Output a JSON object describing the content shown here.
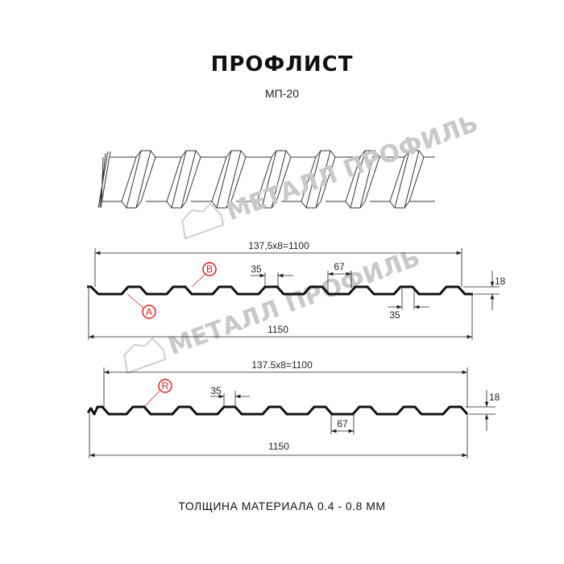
{
  "header": {
    "title": "ПРОФЛИСТ",
    "model": "МП-20"
  },
  "watermark": {
    "text": "МЕТАЛЛ ПРОФИЛЬ"
  },
  "profile_top": {
    "pitch_dim": "137,5x8=1100",
    "total_width": "1150",
    "top_flange": "35",
    "rib_gap": "67",
    "bottom_dim": "35",
    "height": "18",
    "marker_a": "A",
    "marker_b": "B"
  },
  "profile_bottom": {
    "pitch_dim": "137.5x8=1100",
    "total_width": "1150",
    "top_flange": "35",
    "rib_gap": "67",
    "height": "18",
    "marker_r": "R"
  },
  "footer": {
    "thickness": "ТОЛЩИНА МАТЕРИАЛА 0.4 - 0.8 ММ"
  },
  "colors": {
    "profile": "#111111",
    "marker": "#e02020",
    "watermark": "#c9c9c9"
  }
}
